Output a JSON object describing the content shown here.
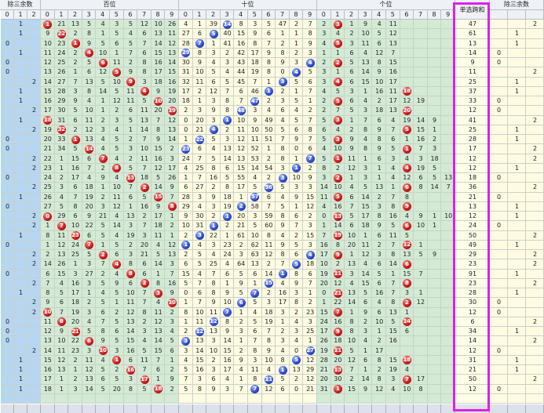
{
  "headers": {
    "group1": "除三余数",
    "hundreds": "百位",
    "tens": "十位",
    "ones": "个位",
    "sum": "单选跨和",
    "group2": "除三余数",
    "r3": [
      "0",
      "1",
      "2"
    ],
    "digits": [
      "0",
      "1",
      "2",
      "3",
      "4",
      "5",
      "6",
      "7",
      "8",
      "9"
    ]
  },
  "rows": [
    [
      "1",
      "1",
      "21",
      "13",
      "5",
      "4",
      "3",
      "5",
      "12",
      "10",
      "26",
      "4",
      "1",
      "39",
      "14",
      "8",
      "3",
      "5",
      "47",
      "2",
      "7",
      "2",
      "3",
      "1",
      "9",
      "4",
      "11",
      "47",
      "2"
    ],
    [
      "1",
      "9",
      "22",
      "2",
      "8",
      "1",
      "5",
      "4",
      "6",
      "13",
      "11",
      "27",
      "6",
      "5",
      "40",
      "15",
      "9",
      "6",
      "1",
      "1",
      "8",
      "3",
      "4",
      "2",
      "10",
      "5",
      "12",
      "61",
      "1"
    ],
    [
      "0",
      "10",
      "23",
      "1",
      "9",
      "5",
      "6",
      "5",
      "7",
      "14",
      "12",
      "28",
      "7",
      "1",
      "41",
      "16",
      "8",
      "7",
      "2",
      "1",
      "9",
      "4",
      "5",
      "3",
      "11",
      "6",
      "13",
      "13",
      "1"
    ],
    [
      "1",
      "11",
      "24",
      "2",
      "4",
      "10",
      "1",
      "7",
      "6",
      "15",
      "13",
      "29",
      "8",
      "3",
      "2",
      "42",
      "17",
      "9",
      "8",
      "2",
      "3",
      "1",
      "1",
      "6",
      "4",
      "12",
      "7",
      "14",
      "0"
    ],
    [
      "0",
      "12",
      "25",
      "2",
      "5",
      "6",
      "11",
      "2",
      "8",
      "16",
      "14",
      "30",
      "9",
      "4",
      "3",
      "43",
      "18",
      "8",
      "9",
      "3",
      "4",
      "2",
      "2",
      "5",
      "13",
      "8",
      "15",
      "9",
      "0"
    ],
    [
      "0",
      "13",
      "26",
      "1",
      "6",
      "12",
      "5",
      "9",
      "8",
      "17",
      "15",
      "31",
      "10",
      "5",
      "4",
      "44",
      "19",
      "8",
      "0",
      "4",
      "5",
      "3",
      "1",
      "6",
      "14",
      "9",
      "16",
      "11",
      "2"
    ],
    [
      "2",
      "14",
      "27",
      "7",
      "13",
      "5",
      "10",
      "9",
      "3",
      "18",
      "16",
      "32",
      "11",
      "6",
      "5",
      "45",
      "7",
      "1",
      "3",
      "5",
      "6",
      "3",
      "4",
      "6",
      "15",
      "10",
      "17",
      "25",
      "1"
    ],
    [
      "1",
      "15",
      "28",
      "3",
      "8",
      "14",
      "5",
      "11",
      "4",
      "9",
      "19",
      "17",
      "2",
      "12",
      "7",
      "6",
      "46",
      "1",
      "2",
      "1",
      "7",
      "4",
      "5",
      "3",
      "1",
      "16",
      "11",
      "18",
      "37",
      "1"
    ],
    [
      "1",
      "16",
      "29",
      "9",
      "4",
      "1",
      "12",
      "11",
      "5",
      "10",
      "20",
      "18",
      "1",
      "3",
      "8",
      "7",
      "47",
      "2",
      "3",
      "5",
      "1",
      "2",
      "5",
      "6",
      "4",
      "2",
      "17",
      "12",
      "19",
      "33",
      "0"
    ],
    [
      "2",
      "17",
      "30",
      "5",
      "10",
      "1",
      "2",
      "6",
      "11",
      "20",
      "19",
      "2",
      "3",
      "9",
      "8",
      "48",
      "3",
      "4",
      "6",
      "4",
      "2",
      "2",
      "7",
      "5",
      "3",
      "18",
      "13",
      "20",
      "12",
      "0"
    ],
    [
      "1",
      "18",
      "31",
      "6",
      "11",
      "2",
      "3",
      "5",
      "13",
      "7",
      "12",
      "0",
      "20",
      "3",
      "1",
      "10",
      "9",
      "49",
      "4",
      "5",
      "7",
      "5",
      "3",
      "1",
      "7",
      "6",
      "4",
      "19",
      "14",
      "9",
      "41",
      "2"
    ],
    [
      "2",
      "19",
      "32",
      "2",
      "12",
      "3",
      "4",
      "1",
      "14",
      "8",
      "13",
      "0",
      "21",
      "4",
      "2",
      "11",
      "10",
      "50",
      "5",
      "6",
      "8",
      "6",
      "4",
      "2",
      "8",
      "9",
      "7",
      "5",
      "15",
      "1",
      "25",
      "1"
    ],
    [
      "0",
      "20",
      "33",
      "1",
      "13",
      "4",
      "5",
      "2",
      "7",
      "9",
      "14",
      "1",
      "22",
      "5",
      "3",
      "12",
      "11",
      "51",
      "7",
      "9",
      "7",
      "5",
      "3",
      "9",
      "4",
      "8",
      "6",
      "1",
      "16",
      "2",
      "28",
      "1"
    ],
    [
      "0",
      "21",
      "34",
      "5",
      "14",
      "4",
      "5",
      "3",
      "10",
      "15",
      "2",
      "23",
      "6",
      "4",
      "13",
      "12",
      "52",
      "1",
      "8",
      "0",
      "6",
      "4",
      "10",
      "9",
      "8",
      "9",
      "5",
      "1",
      "7",
      "3",
      "17",
      "2"
    ],
    [
      "2",
      "22",
      "1",
      "15",
      "6",
      "7",
      "4",
      "2",
      "11",
      "16",
      "3",
      "24",
      "7",
      "5",
      "14",
      "13",
      "53",
      "2",
      "8",
      "1",
      "7",
      "5",
      "1",
      "11",
      "1",
      "6",
      "3",
      "4",
      "3",
      "18",
      "12",
      "2"
    ],
    [
      "2",
      "23",
      "1",
      "16",
      "7",
      "2",
      "8",
      "5",
      "7",
      "12",
      "17",
      "4",
      "25",
      "8",
      "6",
      "15",
      "14",
      "54",
      "3",
      "1",
      "2",
      "8",
      "2",
      "12",
      "3",
      "1",
      "4",
      "4",
      "19",
      "5",
      "12",
      "1"
    ],
    [
      "0",
      "24",
      "2",
      "17",
      "4",
      "9",
      "4",
      "13",
      "18",
      "5",
      "26",
      "1",
      "7",
      "16",
      "5",
      "55",
      "4",
      "2",
      "3",
      "10",
      "9",
      "3",
      "2",
      "1",
      "3",
      "1",
      "4",
      "12",
      "6",
      "5",
      "13",
      "20",
      "6",
      "18",
      "0"
    ],
    [
      "2",
      "25",
      "3",
      "6",
      "18",
      "1",
      "10",
      "7",
      "2",
      "14",
      "9",
      "6",
      "27",
      "2",
      "8",
      "17",
      "5",
      "56",
      "5",
      "3",
      "3",
      "14",
      "10",
      "4",
      "5",
      "13",
      "1",
      "6",
      "8",
      "14",
      "7",
      "36",
      "2"
    ],
    [
      "1",
      "26",
      "4",
      "7",
      "19",
      "2",
      "11",
      "6",
      "5",
      "15",
      "7",
      "28",
      "3",
      "9",
      "18",
      "1",
      "57",
      "6",
      "4",
      "9",
      "15",
      "11",
      "5",
      "6",
      "14",
      "2",
      "7",
      "8",
      "21",
      "0"
    ],
    [
      "0",
      "27",
      "5",
      "8",
      "20",
      "3",
      "12",
      "1",
      "16",
      "9",
      "8",
      "29",
      "4",
      "3",
      "19",
      "2",
      "58",
      "7",
      "5",
      "1",
      "12",
      "4",
      "16",
      "7",
      "15",
      "3",
      "8",
      "9",
      "13",
      "1"
    ],
    [
      "2",
      "0",
      "29",
      "6",
      "9",
      "21",
      "4",
      "13",
      "2",
      "17",
      "1",
      "9",
      "30",
      "2",
      "1",
      "20",
      "3",
      "59",
      "8",
      "6",
      "2",
      "0",
      "13",
      "5",
      "17",
      "8",
      "16",
      "4",
      "9",
      "1",
      "10",
      "12",
      "1"
    ],
    [
      "2",
      "1",
      "7",
      "10",
      "22",
      "5",
      "14",
      "3",
      "7",
      "18",
      "2",
      "10",
      "31",
      "1",
      "2",
      "21",
      "5",
      "60",
      "9",
      "7",
      "3",
      "1",
      "14",
      "6",
      "18",
      "9",
      "5",
      "6",
      "10",
      "1",
      "24",
      "0"
    ],
    [
      "1",
      "8",
      "11",
      "23",
      "6",
      "5",
      "4",
      "19",
      "3",
      "11",
      "1",
      "2",
      "3",
      "22",
      "1",
      "61",
      "10",
      "8",
      "4",
      "2",
      "15",
      "7",
      "19",
      "10",
      "1",
      "6",
      "11",
      "5",
      "50",
      "2"
    ],
    [
      "0",
      "1",
      "12",
      "24",
      "7",
      "1",
      "5",
      "2",
      "20",
      "4",
      "12",
      "1",
      "4",
      "3",
      "23",
      "2",
      "62",
      "11",
      "9",
      "5",
      "3",
      "16",
      "8",
      "20",
      "11",
      "2",
      "7",
      "12",
      "1",
      "49",
      "1"
    ],
    [
      "2",
      "2",
      "13",
      "25",
      "5",
      "2",
      "6",
      "3",
      "21",
      "5",
      "13",
      "2",
      "5",
      "4",
      "24",
      "3",
      "63",
      "12",
      "8",
      "6",
      "4",
      "17",
      "9",
      "1",
      "12",
      "3",
      "8",
      "13",
      "5",
      "9",
      "29",
      "2"
    ],
    [
      "2",
      "14",
      "26",
      "1",
      "3",
      "7",
      "4",
      "8",
      "6",
      "14",
      "3",
      "6",
      "5",
      "25",
      "4",
      "64",
      "13",
      "2",
      "7",
      "5",
      "18",
      "10",
      "2",
      "13",
      "4",
      "6",
      "14",
      "6",
      "23",
      "2"
    ],
    [
      "0",
      "6",
      "15",
      "3",
      "27",
      "2",
      "4",
      "8",
      "6",
      "1",
      "7",
      "15",
      "4",
      "7",
      "6",
      "5",
      "6",
      "14",
      "1",
      "8",
      "6",
      "19",
      "11",
      "3",
      "14",
      "5",
      "1",
      "15",
      "7",
      "91",
      "1"
    ],
    [
      "2",
      "7",
      "4",
      "16",
      "3",
      "5",
      "9",
      "6",
      "2",
      "8",
      "16",
      "5",
      "7",
      "8",
      "1",
      "9",
      "1",
      "15",
      "4",
      "9",
      "7",
      "20",
      "12",
      "4",
      "15",
      "6",
      "7",
      "8",
      "23",
      "2"
    ],
    [
      "1",
      "8",
      "5",
      "17",
      "1",
      "4",
      "5",
      "10",
      "7",
      "3",
      "9",
      "0",
      "6",
      "8",
      "9",
      "5",
      "7",
      "2",
      "16",
      "3",
      "1",
      "0",
      "21",
      "13",
      "5",
      "16",
      "7",
      "3",
      "1",
      "28",
      "1"
    ],
    [
      "2",
      "9",
      "6",
      "18",
      "2",
      "5",
      "1",
      "11",
      "7",
      "4",
      "10",
      "1",
      "7",
      "9",
      "10",
      "6",
      "5",
      "3",
      "17",
      "8",
      "2",
      "1",
      "22",
      "14",
      "6",
      "4",
      "8",
      "2",
      "12",
      "30",
      "0"
    ],
    [
      "2",
      "10",
      "7",
      "19",
      "3",
      "6",
      "2",
      "12",
      "8",
      "11",
      "2",
      "8",
      "10",
      "11",
      "7",
      "1",
      "4",
      "18",
      "3",
      "2",
      "23",
      "15",
      "7",
      "1",
      "9",
      "6",
      "13",
      "1",
      "12",
      "0"
    ],
    [
      "0",
      "11",
      "8",
      "20",
      "4",
      "7",
      "5",
      "13",
      "2",
      "12",
      "3",
      "1",
      "11",
      "12",
      "8",
      "2",
      "5",
      "19",
      "1",
      "4",
      "3",
      "24",
      "16",
      "8",
      "2",
      "10",
      "5",
      "14",
      "6",
      "2"
    ],
    [
      "0",
      "12",
      "9",
      "21",
      "5",
      "8",
      "6",
      "14",
      "3",
      "13",
      "4",
      "2",
      "12",
      "13",
      "9",
      "3",
      "6",
      "7",
      "2",
      "3",
      "25",
      "17",
      "9",
      "8",
      "3",
      "1",
      "15",
      "6",
      "34",
      "1"
    ],
    [
      "0",
      "13",
      "10",
      "22",
      "6",
      "9",
      "5",
      "15",
      "4",
      "14",
      "5",
      "3",
      "13",
      "3",
      "14",
      "1",
      "7",
      "8",
      "3",
      "4",
      "1",
      "26",
      "18",
      "10",
      "4",
      "2",
      "16",
      "14",
      "2"
    ],
    [
      "2",
      "14",
      "11",
      "23",
      "3",
      "10",
      "3",
      "16",
      "5",
      "15",
      "6",
      "3",
      "14",
      "10",
      "15",
      "2",
      "8",
      "9",
      "4",
      "0",
      "27",
      "19",
      "11",
      "5",
      "1",
      "17",
      "12",
      "0"
    ],
    [
      "1",
      "15",
      "12",
      "2",
      "11",
      "4",
      "1",
      "6",
      "11",
      "7",
      "1",
      "4",
      "15",
      "2",
      "16",
      "9",
      "3",
      "10",
      "8",
      "5",
      "12",
      "28",
      "20",
      "12",
      "6",
      "8",
      "15",
      "18",
      "31",
      "1"
    ],
    [
      "1",
      "16",
      "13",
      "1",
      "12",
      "5",
      "2",
      "16",
      "7",
      "6",
      "2",
      "5",
      "16",
      "3",
      "17",
      "4",
      "11",
      "4",
      "1",
      "13",
      "29",
      "21",
      "13",
      "7",
      "1",
      "2",
      "19",
      "4",
      "21",
      "1"
    ],
    [
      "1",
      "17",
      "1",
      "2",
      "13",
      "6",
      "5",
      "3",
      "17",
      "1",
      "9",
      "7",
      "3",
      "6",
      "4",
      "1",
      "8",
      "11",
      "5",
      "2",
      "12",
      "20",
      "30",
      "2",
      "14",
      "8",
      "3",
      "7",
      "17",
      "50",
      "2"
    ],
    [
      "1",
      "18",
      "1",
      "3",
      "14",
      "5",
      "20",
      "8",
      "5",
      "18",
      "2",
      "5",
      "8",
      "9",
      "3",
      "7",
      "7",
      "12",
      "6",
      "0",
      "21",
      "31",
      "1",
      "15",
      "9",
      "12",
      "4",
      "10",
      "8",
      "12",
      "0"
    ]
  ],
  "colors": {
    "grp1": "#b6d6f2",
    "hund": "#d3ead5",
    "tens": "#fffbe2",
    "ones": "#d3ead5",
    "sum": "#ffffe8",
    "grp2": "#fffbe2",
    "header": "#eef1f6",
    "frame": "#e020e8",
    "red": "#c41818",
    "blue": "#2c48c8"
  }
}
